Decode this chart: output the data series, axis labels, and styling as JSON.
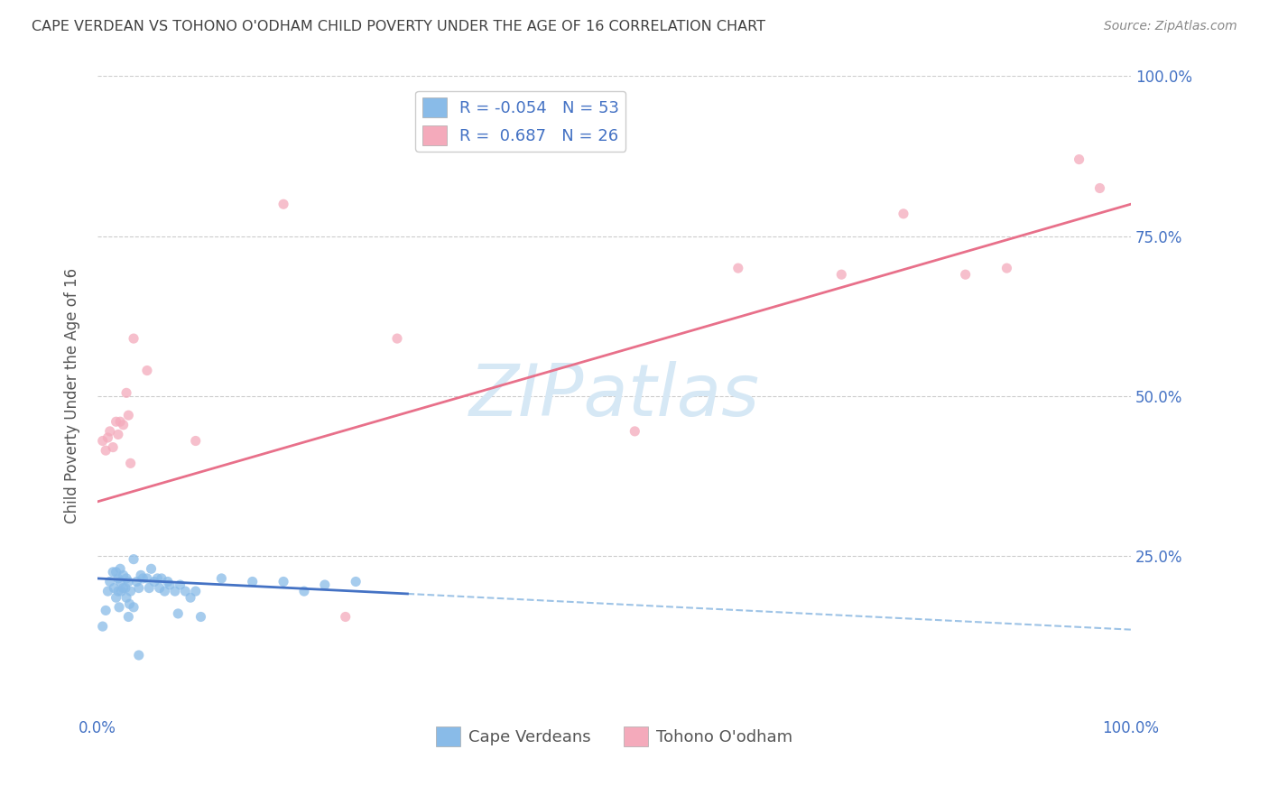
{
  "title": "CAPE VERDEAN VS TOHONO O'ODHAM CHILD POVERTY UNDER THE AGE OF 16 CORRELATION CHART",
  "source": "Source: ZipAtlas.com",
  "ylabel": "Child Poverty Under the Age of 16",
  "xlim": [
    0.0,
    1.0
  ],
  "ylim": [
    0.0,
    1.0
  ],
  "blue_color": "#89BBE8",
  "pink_color": "#F4AABB",
  "blue_line_color": "#4472C4",
  "pink_line_color": "#E8708A",
  "dashed_line_color": "#9DC3E6",
  "watermark_text_color": "#D6E8F5",
  "legend_blue_R": "-0.054",
  "legend_blue_N": "53",
  "legend_pink_R": "0.687",
  "legend_pink_N": "26",
  "label_color": "#4472C4",
  "title_color": "#404040",
  "grid_color": "#CCCCCC",
  "blue_line_solid_end": 0.3,
  "blue_line_y0": 0.215,
  "blue_line_y1": 0.135,
  "pink_line_y0": 0.335,
  "pink_line_y1": 0.8,
  "cape_verdean_x": [
    0.005,
    0.008,
    0.01,
    0.012,
    0.015,
    0.016,
    0.018,
    0.018,
    0.02,
    0.02,
    0.021,
    0.022,
    0.022,
    0.023,
    0.025,
    0.025,
    0.027,
    0.028,
    0.028,
    0.03,
    0.03,
    0.031,
    0.032,
    0.035,
    0.035,
    0.038,
    0.04,
    0.04,
    0.042,
    0.044,
    0.048,
    0.05,
    0.052,
    0.055,
    0.058,
    0.06,
    0.062,
    0.065,
    0.068,
    0.07,
    0.075,
    0.078,
    0.08,
    0.085,
    0.09,
    0.095,
    0.1,
    0.12,
    0.15,
    0.18,
    0.2,
    0.22,
    0.25
  ],
  "cape_verdean_y": [
    0.14,
    0.165,
    0.195,
    0.21,
    0.225,
    0.2,
    0.185,
    0.225,
    0.195,
    0.215,
    0.17,
    0.21,
    0.23,
    0.195,
    0.2,
    0.22,
    0.2,
    0.215,
    0.185,
    0.155,
    0.21,
    0.175,
    0.195,
    0.17,
    0.245,
    0.21,
    0.095,
    0.2,
    0.22,
    0.215,
    0.215,
    0.2,
    0.23,
    0.21,
    0.215,
    0.2,
    0.215,
    0.195,
    0.21,
    0.205,
    0.195,
    0.16,
    0.205,
    0.195,
    0.185,
    0.195,
    0.155,
    0.215,
    0.21,
    0.21,
    0.195,
    0.205,
    0.21
  ],
  "tohono_x": [
    0.005,
    0.008,
    0.01,
    0.012,
    0.015,
    0.018,
    0.02,
    0.022,
    0.025,
    0.028,
    0.03,
    0.032,
    0.035,
    0.048,
    0.095,
    0.18,
    0.24,
    0.29,
    0.52,
    0.62,
    0.72,
    0.78,
    0.84,
    0.88,
    0.95,
    0.97
  ],
  "tohono_y": [
    0.43,
    0.415,
    0.435,
    0.445,
    0.42,
    0.46,
    0.44,
    0.46,
    0.455,
    0.505,
    0.47,
    0.395,
    0.59,
    0.54,
    0.43,
    0.8,
    0.155,
    0.59,
    0.445,
    0.7,
    0.69,
    0.785,
    0.69,
    0.7,
    0.87,
    0.825
  ]
}
